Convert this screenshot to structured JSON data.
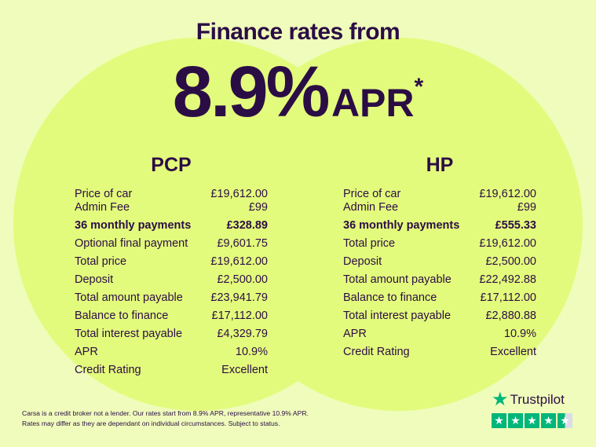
{
  "headline": "Finance rates from",
  "rate": "8.9%",
  "apr": "APR",
  "asterisk": "*",
  "colors": {
    "background": "#effcbb",
    "circle": "#e3fb7c",
    "text": "#2b0d45",
    "trustpilot": "#00b67a"
  },
  "pcp": {
    "title": "PCP",
    "rows": [
      {
        "label": "Price of car",
        "value": "£19,612.00"
      },
      {
        "label": "Admin Fee",
        "value": "£99"
      },
      {
        "label": "36 monthly payments",
        "value": "£328.89"
      },
      {
        "label": "Optional final payment",
        "value": "£9,601.75"
      },
      {
        "label": "Total price",
        "value": "£19,612.00"
      },
      {
        "label": "Deposit",
        "value": "£2,500.00"
      },
      {
        "label": "Total amount payable",
        "value": "£23,941.79"
      },
      {
        "label": "Balance to finance",
        "value": "£17,112.00"
      },
      {
        "label": "Total interest payable",
        "value": "£4,329.79"
      },
      {
        "label": "APR",
        "value": "10.9%"
      },
      {
        "label": "Credit Rating",
        "value": "Excellent"
      }
    ]
  },
  "hp": {
    "title": "HP",
    "rows": [
      {
        "label": "Price of car",
        "value": "£19,612.00"
      },
      {
        "label": "Admin Fee",
        "value": "£99"
      },
      {
        "label": "36 monthly payments",
        "value": "£555.33"
      },
      {
        "label": "Total price",
        "value": "£19,612.00"
      },
      {
        "label": "Deposit",
        "value": "£2,500.00"
      },
      {
        "label": "Total amount payable",
        "value": "£22,492.88"
      },
      {
        "label": "Balance to finance",
        "value": "£17,112.00"
      },
      {
        "label": "Total interest payable",
        "value": "£2,880.88"
      },
      {
        "label": "APR",
        "value": "10.9%"
      },
      {
        "label": "Credit Rating",
        "value": "Excellent"
      }
    ]
  },
  "disclaimer": [
    "Carsa is a credit broker not a lender. Our rates start from 8.9% APR, representative 10.9% APR.",
    "Rates may differ as they are dependant on individual circumstances. Subject to status."
  ],
  "trustpilot": {
    "name": "Trustpilot",
    "rating": 4.5,
    "max": 5
  }
}
